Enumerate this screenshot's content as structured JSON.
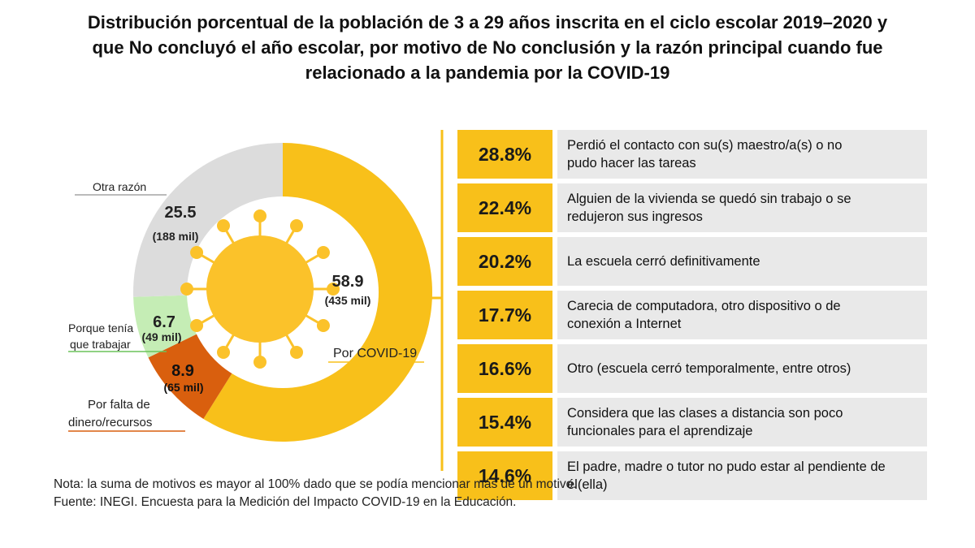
{
  "title_lines": [
    "Distribución porcentual de la población de 3 a 29 años inscrita en el ciclo escolar 2019–2020 y",
    "que No concluyó el año escolar, por motivo de No conclusión y la razón principal cuando fue",
    "relacionado a la pandemia por la COVID-19"
  ],
  "colors": {
    "covid": "#F8C01A",
    "otra": "#DCDCDC",
    "trabajar": "#C5EDB5",
    "dinero": "#D95F0E",
    "reason_value_bg": "#F8C01A",
    "reason_text_bg": "#E9E9E9",
    "sun": "#FBC22A"
  },
  "chart_data": [
    {
      "type": "pie",
      "slices": [
        {
          "label": "Por COVID-19",
          "value": 58.9,
          "count_label": "(435 mil)",
          "value_label": "58.9"
        },
        {
          "label": "Por falta de dinero/recursos",
          "value": 8.9,
          "count_label": "(65 mil)",
          "value_label": "8.9"
        },
        {
          "label": "Porque tenía que trabajar",
          "value": 6.7,
          "count_label": "(49 mil)",
          "value_label": "6.7"
        },
        {
          "label": "Otra razón",
          "value": 25.5,
          "count_label": "(188 mil)",
          "value_label": "25.5"
        }
      ],
      "label_lines": {
        "covid": [
          "Por COVID-19"
        ],
        "dinero": [
          "Por falta de",
          "dinero/recursos"
        ],
        "trabajar": [
          "Porque tenía",
          "que trabajar"
        ],
        "otra": [
          "Otra razón"
        ]
      },
      "center_icon": "coronavirus-icon"
    },
    {
      "type": "bar",
      "orientation": "horizontal",
      "categories": [
        "Perdió el contacto con su(s) maestro/a(s) o no pudo hacer las tareas",
        "Alguien de la vivienda se quedó sin trabajo o se redujeron sus ingresos",
        "La escuela cerró definitivamente",
        "Carecia de computadora, otro dispositivo o de conexión a Internet",
        "Otro (escuela cerró temporalmente, entre otros)",
        "Considera que las clases a distancia son poco funcionales para el aprendizaje",
        "El padre, madre o tutor no pudo estar al pendiente de él(ella)"
      ],
      "values": [
        28.8,
        22.4,
        20.2,
        17.7,
        16.6,
        15.4,
        14.6
      ],
      "value_labels": [
        "28.8%",
        "22.4%",
        "20.2%",
        "17.7%",
        "16.6%",
        "15.4%",
        "14.6%"
      ],
      "category_lines": [
        [
          "Perdió el contacto con su(s) maestro/a(s) o no",
          "pudo hacer las tareas"
        ],
        [
          "Alguien de la vivienda se quedó sin trabajo o se",
          "redujeron sus ingresos"
        ],
        [
          "La escuela cerró definitivamente"
        ],
        [
          "Carecia de computadora, otro dispositivo o de",
          "conexión a Internet"
        ],
        [
          "Otro (escuela cerró temporalmente, entre otros)"
        ],
        [
          "Considera que las clases a distancia son poco",
          "funcionales para el aprendizaje"
        ],
        [
          "El padre, madre o tutor no pudo estar al pendiente de",
          "él(ella)"
        ]
      ]
    }
  ],
  "notes": {
    "nota": "Nota: la suma de motivos es mayor al 100% dado que se podía mencionar más de un motivo.",
    "fuente": "Fuente: INEGI. Encuesta para la Medición del Impacto COVID-19 en la Educación."
  }
}
